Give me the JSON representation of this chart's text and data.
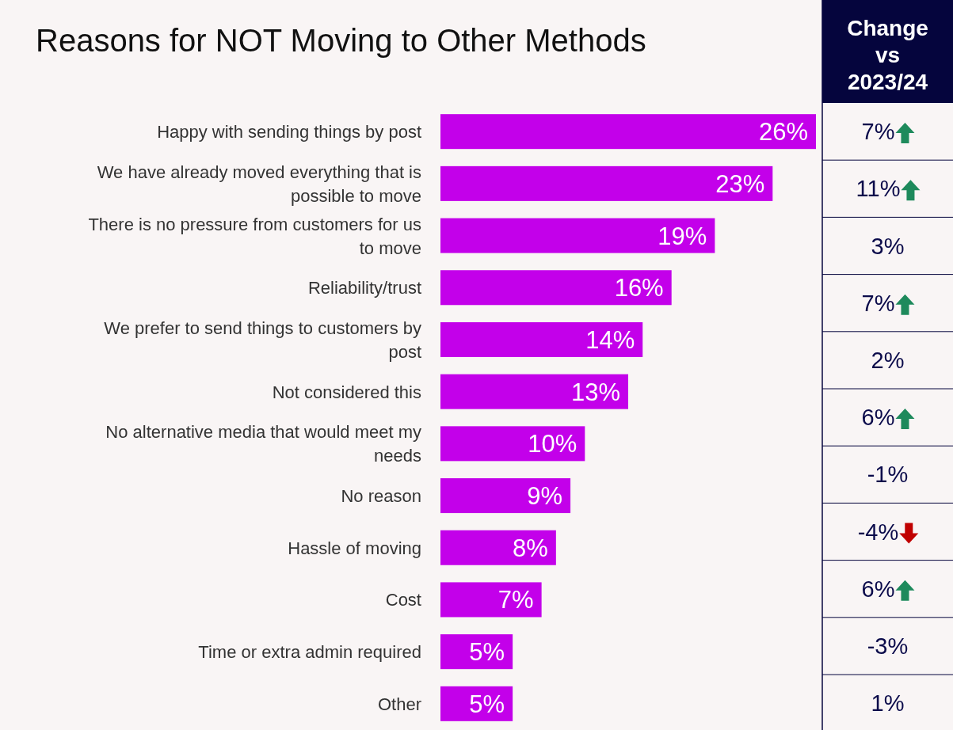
{
  "chart_data": [
    {
      "type": "bar",
      "orientation": "horizontal",
      "title": "Reasons for NOT Moving to Other Methods",
      "categories": [
        "Happy with sending things by post",
        "We have already moved everything that is possible to move",
        "There is no pressure from customers for us to move",
        "Reliability/trust",
        "We prefer to send things to customers by post",
        "Not considered this",
        "No alternative media that would meet my needs",
        "No reason",
        "Hassle of moving",
        "Cost",
        "Time or extra admin required",
        "Other"
      ],
      "values": [
        26,
        23,
        19,
        16,
        14,
        13,
        10,
        9,
        8,
        7,
        5,
        5
      ],
      "color": "#c300ea",
      "value_labels": [
        "26%",
        "23%",
        "19%",
        "16%",
        "14%",
        "13%",
        "10%",
        "9%",
        "8%",
        "7%",
        "5%",
        "5%"
      ]
    },
    {
      "type": "other",
      "title": "Change vs 2023/24",
      "categories": [
        null,
        null,
        null,
        null,
        null,
        null,
        null,
        null,
        null,
        null,
        null
      ],
      "values": [
        7,
        11,
        3,
        7,
        2,
        6,
        -1,
        -4,
        6,
        -3,
        1
      ],
      "colors": [
        "#1e8a5c",
        "#1e8a5c",
        null,
        "#1e8a5c",
        null,
        "#1e8a5c",
        null,
        "#c00000",
        "#1e8a5c",
        null,
        null
      ],
      "value_labels": [
        "7%",
        "11%",
        "3%",
        "7%",
        "2%",
        "6%",
        "-1%",
        "-4%",
        "6%",
        "-3%",
        "1%"
      ]
    }
  ]
}
